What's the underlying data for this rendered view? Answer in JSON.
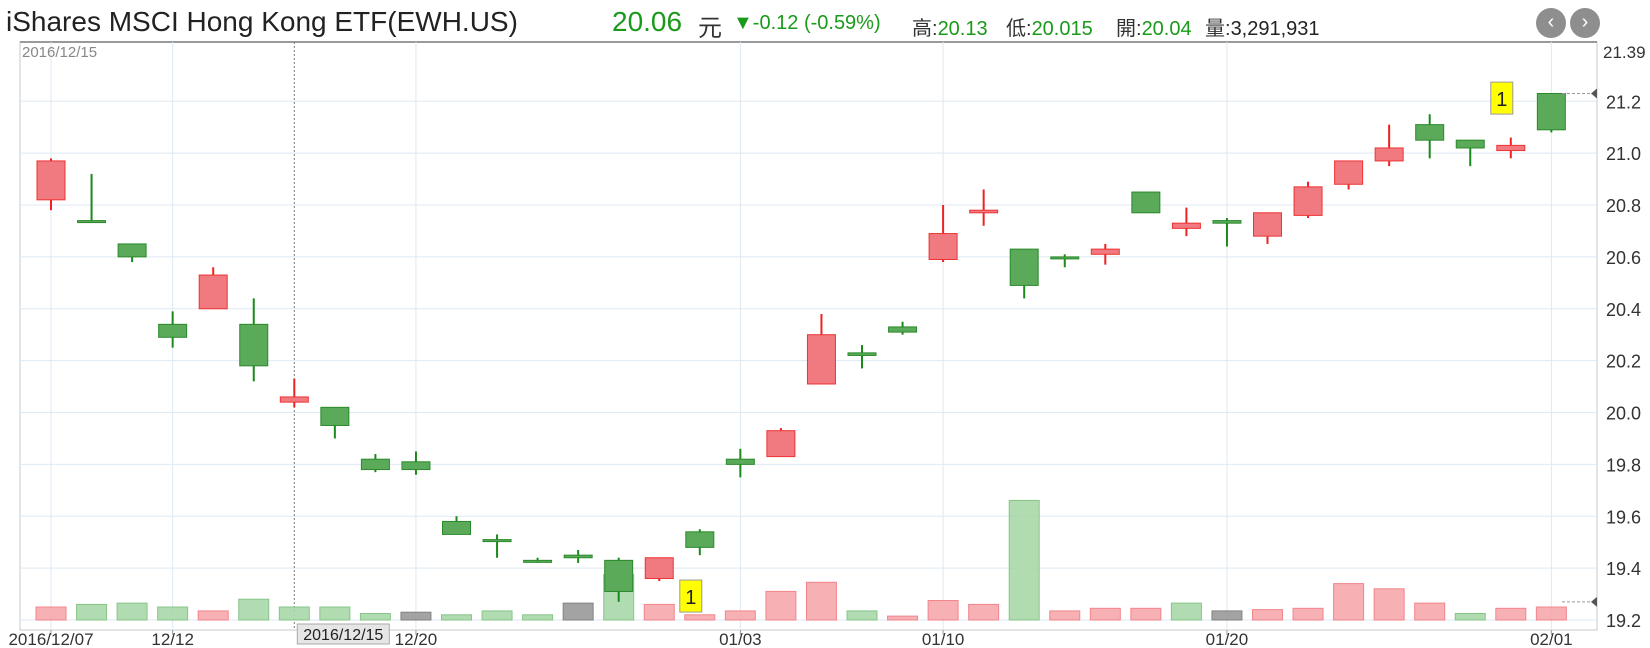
{
  "header": {
    "title": "iShares MSCI Hong Kong ETF(EWH.US)",
    "price": "20.06",
    "unit": "元",
    "change": "▼-0.12 (-0.59%)",
    "high_label": "高:",
    "high_value": "20.13",
    "low_label": "低:",
    "low_value": "20.015",
    "open_label": "開:",
    "open_value": "20.04",
    "volume_label": "量:",
    "volume_value": "3,291,931",
    "prev_icon": "chevron-left-icon",
    "next_icon": "chevron-right-icon",
    "prev_glyph": "‹",
    "next_glyph": "›"
  },
  "chart_data": {
    "type": "candlestick",
    "corner_date": "2016/12/15",
    "crosshair_label": "2016/12/15",
    "ylim": [
      19.2,
      21.39
    ],
    "y_ticks": [
      19.2,
      19.4,
      19.6,
      19.8,
      20.0,
      20.2,
      20.4,
      20.6,
      20.8,
      21.0,
      21.2
    ],
    "y_tick_labels": [
      "19.2",
      "19.4",
      "19.6",
      "19.8",
      "20.0",
      "20.2",
      "20.4",
      "20.6",
      "20.8",
      "21.0",
      "21.2"
    ],
    "y_max_label": "21.39",
    "x_tick_labels": [
      {
        "label": "2016/12/07",
        "index": 0
      },
      {
        "label": "12/12",
        "index": 3
      },
      {
        "label": "12/20",
        "index": 9
      },
      {
        "label": "01/03",
        "index": 17
      },
      {
        "label": "01/10",
        "index": 22
      },
      {
        "label": "01/20",
        "index": 29
      },
      {
        "label": "02/01",
        "index": 37
      }
    ],
    "colors": {
      "up": "#f07a80",
      "down": "#5aaa5a",
      "neutral": "#9a9a9a",
      "grid": "#dde9f3"
    },
    "candles": [
      {
        "o": 20.82,
        "h": 20.98,
        "l": 20.78,
        "c": 20.97,
        "dir": "up"
      },
      {
        "o": 20.74,
        "h": 20.92,
        "l": 20.74,
        "c": 20.74,
        "dir": "down"
      },
      {
        "o": 20.65,
        "h": 20.65,
        "l": 20.58,
        "c": 20.6,
        "dir": "down"
      },
      {
        "o": 20.34,
        "h": 20.39,
        "l": 20.25,
        "c": 20.29,
        "dir": "down"
      },
      {
        "o": 20.4,
        "h": 20.56,
        "l": 20.4,
        "c": 20.53,
        "dir": "up"
      },
      {
        "o": 20.34,
        "h": 20.44,
        "l": 20.12,
        "c": 20.18,
        "dir": "down"
      },
      {
        "o": 20.04,
        "h": 20.13,
        "l": 20.02,
        "c": 20.06,
        "dir": "up"
      },
      {
        "o": 20.02,
        "h": 20.02,
        "l": 19.9,
        "c": 19.95,
        "dir": "down"
      },
      {
        "o": 19.82,
        "h": 19.84,
        "l": 19.77,
        "c": 19.78,
        "dir": "down"
      },
      {
        "o": 19.81,
        "h": 19.85,
        "l": 19.76,
        "c": 19.78,
        "dir": "down"
      },
      {
        "o": 19.58,
        "h": 19.6,
        "l": 19.53,
        "c": 19.53,
        "dir": "down"
      },
      {
        "o": 19.51,
        "h": 19.53,
        "l": 19.44,
        "c": 19.51,
        "dir": "down"
      },
      {
        "o": 19.43,
        "h": 19.44,
        "l": 19.42,
        "c": 19.43,
        "dir": "down"
      },
      {
        "o": 19.45,
        "h": 19.47,
        "l": 19.42,
        "c": 19.44,
        "dir": "down"
      },
      {
        "o": 19.43,
        "h": 19.44,
        "l": 19.27,
        "c": 19.31,
        "dir": "down"
      },
      {
        "o": 19.36,
        "h": 19.44,
        "l": 19.35,
        "c": 19.44,
        "dir": "up"
      },
      {
        "o": 19.54,
        "h": 19.55,
        "l": 19.45,
        "c": 19.48,
        "dir": "down"
      },
      {
        "o": 19.82,
        "h": 19.86,
        "l": 19.75,
        "c": 19.8,
        "dir": "down"
      },
      {
        "o": 19.83,
        "h": 19.94,
        "l": 19.83,
        "c": 19.93,
        "dir": "up"
      },
      {
        "o": 20.11,
        "h": 20.38,
        "l": 20.11,
        "c": 20.3,
        "dir": "up"
      },
      {
        "o": 20.23,
        "h": 20.26,
        "l": 20.17,
        "c": 20.22,
        "dir": "down"
      },
      {
        "o": 20.33,
        "h": 20.35,
        "l": 20.3,
        "c": 20.31,
        "dir": "down"
      },
      {
        "o": 20.59,
        "h": 20.8,
        "l": 20.58,
        "c": 20.69,
        "dir": "up"
      },
      {
        "o": 20.77,
        "h": 20.86,
        "l": 20.72,
        "c": 20.78,
        "dir": "up"
      },
      {
        "o": 20.63,
        "h": 20.63,
        "l": 20.44,
        "c": 20.49,
        "dir": "down"
      },
      {
        "o": 20.6,
        "h": 20.61,
        "l": 20.56,
        "c": 20.6,
        "dir": "down"
      },
      {
        "o": 20.61,
        "h": 20.65,
        "l": 20.57,
        "c": 20.63,
        "dir": "up"
      },
      {
        "o": 20.85,
        "h": 20.85,
        "l": 20.77,
        "c": 20.77,
        "dir": "down"
      },
      {
        "o": 20.71,
        "h": 20.79,
        "l": 20.68,
        "c": 20.73,
        "dir": "up"
      },
      {
        "o": 20.74,
        "h": 20.75,
        "l": 20.64,
        "c": 20.73,
        "dir": "down"
      },
      {
        "o": 20.68,
        "h": 20.77,
        "l": 20.65,
        "c": 20.77,
        "dir": "up"
      },
      {
        "o": 20.76,
        "h": 20.89,
        "l": 20.75,
        "c": 20.87,
        "dir": "up"
      },
      {
        "o": 20.88,
        "h": 20.97,
        "l": 20.86,
        "c": 20.97,
        "dir": "up"
      },
      {
        "o": 20.97,
        "h": 21.11,
        "l": 20.95,
        "c": 21.02,
        "dir": "up"
      },
      {
        "o": 21.11,
        "h": 21.15,
        "l": 20.98,
        "c": 21.05,
        "dir": "down"
      },
      {
        "o": 21.05,
        "h": 21.05,
        "l": 20.95,
        "c": 21.02,
        "dir": "down"
      },
      {
        "o": 21.01,
        "h": 21.06,
        "l": 20.98,
        "c": 21.03,
        "dir": "up"
      },
      {
        "o": 21.23,
        "h": 21.23,
        "l": 21.08,
        "c": 21.09,
        "dir": "down"
      }
    ],
    "volume": {
      "ylim": [
        0,
        1
      ],
      "values": [
        0.1,
        0.12,
        0.13,
        0.1,
        0.07,
        0.16,
        0.1,
        0.1,
        0.05,
        0.06,
        0.04,
        0.07,
        0.04,
        0.13,
        0.35,
        0.12,
        0.04,
        0.07,
        0.22,
        0.29,
        0.07,
        0.03,
        0.15,
        0.12,
        0.92,
        0.07,
        0.09,
        0.09,
        0.13,
        0.07,
        0.08,
        0.09,
        0.28,
        0.24,
        0.13,
        0.05,
        0.09,
        0.1
      ],
      "dir": [
        "up",
        "down",
        "down",
        "down",
        "up",
        "down",
        "down",
        "down",
        "down",
        "neutral",
        "down",
        "down",
        "down",
        "neutral",
        "down",
        "up",
        "up",
        "up",
        "up",
        "up",
        "down",
        "up",
        "up",
        "up",
        "down",
        "up",
        "up",
        "up",
        "down",
        "neutral",
        "up",
        "up",
        "up",
        "up",
        "up",
        "down",
        "up",
        "up"
      ]
    },
    "markers": [
      {
        "index": 16,
        "price": 19.3,
        "label": "1"
      },
      {
        "index": 36,
        "price": 21.22,
        "label": "1"
      }
    ]
  }
}
